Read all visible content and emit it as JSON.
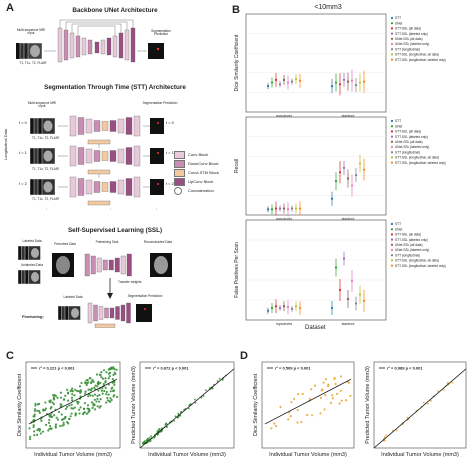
{
  "panels": {
    "A": "A",
    "B": "B",
    "C": "C",
    "D": "D"
  },
  "panel_a": {
    "unet_title": "Backbone UNet Architecture",
    "unet_input": "Multi-sequence MRI input",
    "unet_seqs": "T1, T1c, T2, FLAIR",
    "unet_output": "Segmentation Prediction",
    "stt_title": "Segmentation Through Time (STT) Architecture",
    "stt_input": "Multi-sequence MRI input",
    "stt_output": "Segmentation Prediction",
    "longitudinal": "Longitudinal Data",
    "timepoints": [
      "t = 0",
      "t = 1",
      "t = 2"
    ],
    "stt_seqs": "T1, T1c, T2, FLAIR",
    "ellipsis": ":",
    "legend": [
      "Conv Block",
      "DownConv Block",
      "ConvLSTM Block",
      "UpConv Block",
      "Concatenation"
    ],
    "legend_colors": [
      "#e8c9da",
      "#c98fb3",
      "#f2c9a0",
      "#9a4f82"
    ],
    "ssl_title": "Self-Supervised Learning (SSL)",
    "ssl_labeled": "Labeled Data",
    "ssl_unlabeled": "Unlabeled Data",
    "ssl_perturbed": "Perturbed Data",
    "ssl_pretraining": "Pretraining Task",
    "ssl_reconstructed": "Reconstructed Data",
    "ft_labeled": "Labeled Data",
    "ft_seg": "Segmentation Prediction",
    "finetuning": "Finetuning:",
    "finetuning_note": "Transfer weights"
  },
  "panel_b": {
    "title": "<10mm3",
    "legend": [
      "STT",
      "UNet",
      "STT-SSL (all data)",
      "STT-SSL (labeled only)",
      "UNet-SSL (all data)",
      "UNet-SSL (labeled only)",
      "STT (longitudinal)",
      "STT-SSL (longitudinal, all data)",
      "STT-SSL (longitudinal, labeled only)"
    ],
    "xlabel": "Dataset",
    "categories": [
      "mycohorts",
      "stanford"
    ]
  },
  "chart_data": [
    {
      "type": "scatter",
      "panel": "B1",
      "ylabel": "Dice Similarity Coefficient",
      "ylim": [
        0,
        1
      ],
      "categories": [
        "mycohorts",
        "stanford"
      ],
      "series": [
        {
          "values": [
            0.26,
            0.26
          ]
        },
        {
          "values": [
            0.3,
            0.3
          ]
        },
        {
          "values": [
            0.33,
            0.28
          ]
        },
        {
          "values": [
            0.28,
            0.33
          ]
        },
        {
          "values": [
            0.33,
            0.31
          ]
        },
        {
          "values": [
            0.3,
            0.32
          ]
        },
        {
          "values": [
            0.31,
            0.27
          ]
        },
        {
          "values": [
            0.34,
            0.3
          ]
        },
        {
          "values": [
            0.32,
            0.31
          ]
        }
      ]
    },
    {
      "type": "scatter",
      "panel": "B2",
      "ylabel": "Recall",
      "ylim": [
        0,
        1
      ],
      "categories": [
        "mycohorts",
        "stanford"
      ],
      "series": [
        {
          "values": [
            0.03,
            0.15
          ]
        },
        {
          "values": [
            0.03,
            0.35
          ]
        },
        {
          "values": [
            0.04,
            0.45
          ]
        },
        {
          "values": [
            0.04,
            0.5
          ]
        },
        {
          "values": [
            0.04,
            0.38
          ]
        },
        {
          "values": [
            0.03,
            0.3
          ]
        },
        {
          "values": [
            0.04,
            0.42
          ]
        },
        {
          "values": [
            0.04,
            0.55
          ]
        },
        {
          "values": [
            0.04,
            0.48
          ]
        }
      ]
    },
    {
      "type": "scatter",
      "panel": "B3",
      "ylabel": "False Positives Per Scan",
      "ylim": [
        0,
        1
      ],
      "categories": [
        "mycohorts",
        "stanford"
      ],
      "series": [
        {
          "values": [
            0.07,
            0.1
          ]
        },
        {
          "values": [
            0.1,
            0.55
          ]
        },
        {
          "values": [
            0.12,
            0.3
          ]
        },
        {
          "values": [
            0.1,
            0.65
          ]
        },
        {
          "values": [
            0.12,
            0.2
          ]
        },
        {
          "values": [
            0.11,
            0.4
          ]
        },
        {
          "values": [
            0.09,
            0.15
          ]
        },
        {
          "values": [
            0.12,
            0.25
          ]
        },
        {
          "values": [
            0.1,
            0.18
          ]
        }
      ]
    },
    {
      "type": "scatter",
      "panel": "C1",
      "annotation": "r² = 0.221  p < 0.001",
      "xlabel": "Individual Tumor Volume (mm3)",
      "ylabel": "Dice Similarity Coefficient",
      "color": "#2e8b2e"
    },
    {
      "type": "scatter",
      "panel": "C2",
      "annotation": "r² = 0.872  p < 0.001",
      "xlabel": "Individual Tumor Volume (mm3)",
      "ylabel": "Predicted Tumor Volume (mm3)",
      "color": "#2e8b2e"
    },
    {
      "type": "scatter",
      "panel": "D1",
      "annotation": "r² = 0.509  p < 0.001",
      "xlabel": "Individual Tumor Volume (mm3)",
      "ylabel": "Dice Similarity Coefficient",
      "color": "#e8a42a"
    },
    {
      "type": "scatter",
      "panel": "D2",
      "annotation": "r² = 0.989  p < 0.001",
      "xlabel": "Individual Tumor Volume (mm3)",
      "ylabel": "Predicted Tumor Volume (mm3)",
      "color": "#e8a42a"
    }
  ],
  "series_colors": [
    "#1f77b4",
    "#2ca02c",
    "#d62728",
    "#9467bd",
    "#8c564b",
    "#e377c2",
    "#7f7f7f",
    "#bcbd22",
    "#ff7f0e"
  ]
}
